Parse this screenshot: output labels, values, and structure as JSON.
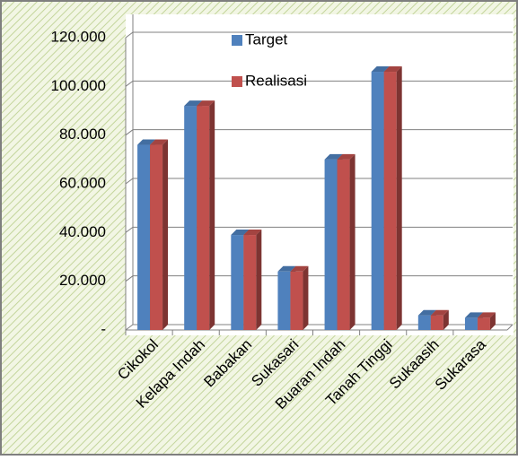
{
  "chart_data": {
    "type": "bar",
    "categories": [
      "Cikokol",
      "Kelapa Indah",
      "Babakan",
      "Sukasari",
      "Buaran Indah",
      "Tanah Tinggi",
      "Sukaasih",
      "Sukarasa"
    ],
    "series": [
      {
        "name": "Target",
        "color": "#4f81bd",
        "values": [
          76000,
          92000,
          39000,
          24000,
          70000,
          106000,
          6000,
          5000
        ]
      },
      {
        "name": "Realisasi",
        "color": "#c0504d",
        "values": [
          76000,
          92000,
          39000,
          24000,
          70000,
          106000,
          6000,
          5000
        ]
      }
    ],
    "ylim": [
      0,
      120000
    ],
    "yticks": [
      {
        "value": 0,
        "label": "-"
      },
      {
        "value": 20000,
        "label": "20.000"
      },
      {
        "value": 40000,
        "label": "40.000"
      },
      {
        "value": 60000,
        "label": "60.000"
      },
      {
        "value": 80000,
        "label": "80.000"
      },
      {
        "value": 100000,
        "label": "100.000"
      },
      {
        "value": 120000,
        "label": "120.000"
      }
    ],
    "grid": true
  }
}
